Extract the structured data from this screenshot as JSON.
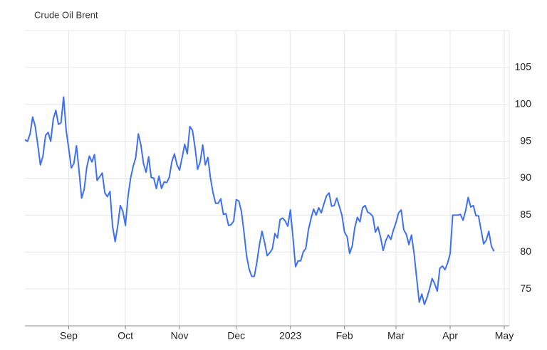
{
  "chart_data": {
    "type": "line",
    "title": "Crude Oil Brent",
    "categories": [
      null,
      null,
      null,
      null,
      null,
      null,
      null,
      null,
      null,
      null,
      null,
      null,
      null,
      null,
      null,
      null,
      null,
      "Sep",
      null,
      null,
      null,
      null,
      null,
      null,
      null,
      null,
      null,
      null,
      null,
      null,
      null,
      null,
      null,
      null,
      null,
      null,
      null,
      null,
      null,
      "Oct",
      null,
      null,
      null,
      null,
      null,
      null,
      null,
      null,
      null,
      null,
      null,
      null,
      null,
      null,
      null,
      null,
      null,
      null,
      null,
      null,
      "Nov",
      null,
      null,
      null,
      null,
      null,
      null,
      null,
      null,
      null,
      null,
      null,
      null,
      null,
      null,
      null,
      null,
      null,
      null,
      null,
      null,
      null,
      "Dec",
      null,
      null,
      null,
      null,
      null,
      null,
      null,
      null,
      null,
      null,
      null,
      null,
      null,
      null,
      null,
      null,
      null,
      null,
      null,
      null,
      "2023",
      null,
      null,
      null,
      null,
      null,
      null,
      null,
      null,
      null,
      null,
      null,
      null,
      null,
      null,
      null,
      null,
      null,
      null,
      null,
      null,
      "Feb",
      null,
      null,
      null,
      null,
      null,
      null,
      null,
      null,
      null,
      null,
      null,
      null,
      null,
      null,
      null,
      null,
      null,
      null,
      null,
      "Mar",
      null,
      null,
      null,
      null,
      null,
      null,
      null,
      null,
      null,
      null,
      null,
      null,
      null,
      null,
      null,
      null,
      null,
      null,
      null,
      null,
      "Apr",
      null,
      null,
      null,
      null,
      null,
      null,
      null,
      null,
      null,
      null,
      null,
      null,
      null,
      null,
      null,
      null,
      null,
      null,
      null,
      null,
      "May"
    ],
    "series": [
      {
        "name": "Crude Oil Brent",
        "color": "#3f6ff2",
        "values": [
          95.2,
          95,
          96,
          98.3,
          97,
          94.5,
          91.8,
          93,
          95.8,
          96.2,
          95,
          98,
          99.2,
          97.3,
          97.5,
          101,
          96.5,
          94,
          91.4,
          92,
          94.4,
          91,
          87.3,
          88.5,
          91.5,
          93,
          92.2,
          93.2,
          89.7,
          90.2,
          90.7,
          88,
          87.5,
          88.2,
          83.5,
          81.4,
          83.5,
          86.3,
          85.5,
          83.6,
          87.5,
          90,
          91.6,
          92.8,
          96,
          94.5,
          92,
          90.8,
          92.9,
          90.1,
          90,
          88.6,
          90.3,
          88.6,
          89.5,
          89.4,
          90.1,
          92.2,
          93.3,
          91.8,
          91.1,
          92.8,
          94.6,
          93.3,
          97,
          96.5,
          94.2,
          91.2,
          92.2,
          94.5,
          91.8,
          92.8,
          90,
          88,
          86.6,
          86.6,
          87.2,
          85.1,
          85.2,
          83.6,
          83.7,
          84.2,
          87.1,
          86.9,
          85.5,
          82.7,
          79.5,
          77.7,
          76.7,
          76.7,
          78.6,
          81,
          82.8,
          81.3,
          79.5,
          79.9,
          80.4,
          82.5,
          81.9,
          84.4,
          84.6,
          84.2,
          83.5,
          85.7,
          82,
          78,
          78.8,
          78.8,
          80,
          80.5,
          83,
          84.5,
          85.8,
          85,
          86,
          85.3,
          86.5,
          87.6,
          88,
          86.2,
          86.3,
          87.3,
          86.2,
          85,
          82.7,
          82.1,
          79.8,
          80.8,
          83.3,
          84.7,
          84.1,
          86,
          86.3,
          85.4,
          85.2,
          84.8,
          82.7,
          83.4,
          82,
          80.2,
          81.5,
          82.3,
          81.7,
          83,
          84,
          85.3,
          85.7,
          83,
          82.4,
          81,
          82.3,
          79.8,
          76.5,
          73.2,
          74.3,
          72.9,
          73.8,
          75,
          76.4,
          75.7,
          74.7,
          77.8,
          78.1,
          77.6,
          78.5,
          79.8,
          85,
          85,
          85,
          85.1,
          84.3,
          85.6,
          87.4,
          86.1,
          86.3,
          84.9,
          84.9,
          83,
          81.1,
          81.6,
          82.8,
          80.8,
          80.1,
          null,
          null,
          null,
          null
        ]
      }
    ],
    "ylim": [
      70,
      110
    ],
    "yticks": [
      75,
      80,
      85,
      90,
      95,
      100,
      105
    ],
    "grid": true
  }
}
